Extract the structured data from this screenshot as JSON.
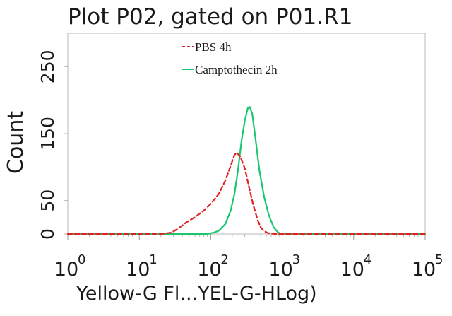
{
  "chart_data": {
    "type": "line",
    "title": "Plot P02, gated on P01.R1",
    "xlabel": "Yellow-G Fl...YEL-G-HLog)",
    "ylabel": "Count",
    "x_scale": "log",
    "xlim": [
      1,
      100000
    ],
    "ylim": [
      0,
      300
    ],
    "yticks": [
      "0",
      "50",
      "150",
      "250"
    ],
    "xticks": [
      {
        "base": "10",
        "exp": "0",
        "value": 1
      },
      {
        "base": "10",
        "exp": "1",
        "value": 10
      },
      {
        "base": "10",
        "exp": "2",
        "value": 100
      },
      {
        "base": "10",
        "exp": "3",
        "value": 1000
      },
      {
        "base": "10",
        "exp": "4",
        "value": 10000
      },
      {
        "base": "10",
        "exp": "5",
        "value": 100000
      }
    ],
    "legend_position": "top-center",
    "series": [
      {
        "name": "PBS 4h",
        "color": "#e02020",
        "style": "dashed",
        "x": [
          1,
          20,
          28,
          35,
          45,
          60,
          80,
          100,
          130,
          160,
          190,
          215,
          230,
          260,
          300,
          340,
          390,
          450,
          500,
          560,
          650,
          800,
          1000,
          100000
        ],
        "y": [
          0,
          0,
          2,
          8,
          17,
          25,
          35,
          45,
          60,
          80,
          102,
          118,
          122,
          115,
          98,
          72,
          45,
          22,
          10,
          4,
          1,
          0,
          0,
          0
        ]
      },
      {
        "name": "Camptothecin 2h",
        "color": "#19c86e",
        "style": "solid",
        "x": [
          1,
          90,
          110,
          130,
          160,
          190,
          215,
          240,
          270,
          300,
          330,
          350,
          380,
          420,
          480,
          560,
          650,
          760,
          880,
          1000,
          100000
        ],
        "y": [
          0,
          0,
          2,
          5,
          15,
          35,
          60,
          95,
          140,
          170,
          188,
          190,
          180,
          145,
          95,
          55,
          28,
          10,
          2,
          0,
          0
        ]
      }
    ]
  }
}
